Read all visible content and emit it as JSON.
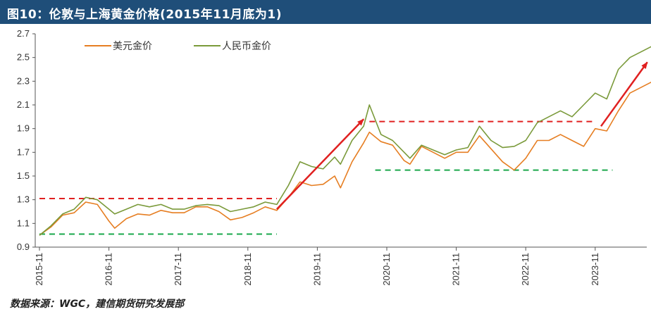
{
  "header": {
    "title": "图10：伦敦与上海黄金价格(2015年11月底为1)"
  },
  "footer": {
    "source": "数据来源：WGC，建信期货研究发展部"
  },
  "chart_data": {
    "type": "line",
    "title": "图10：伦敦与上海黄金价格(2015年11月底为1)",
    "xlabel": "",
    "ylabel": "",
    "ylim": [
      0.9,
      2.7
    ],
    "yticks": [
      "0.9",
      "1.1",
      "1.3",
      "1.5",
      "1.7",
      "1.9",
      "2.1",
      "2.3",
      "2.5",
      "2.7"
    ],
    "xticks": [
      "2015-11",
      "2016-11",
      "2017-11",
      "2018-11",
      "2019-11",
      "2020-11",
      "2021-11",
      "2022-11",
      "2023-11"
    ],
    "legend_position": "top-left",
    "grid": false,
    "series": [
      {
        "name": "美元金价",
        "color": "#e67e22",
        "points": [
          [
            "2015-11",
            1.0
          ],
          [
            "2016-01",
            1.07
          ],
          [
            "2016-03",
            1.17
          ],
          [
            "2016-05",
            1.19
          ],
          [
            "2016-07",
            1.28
          ],
          [
            "2016-09",
            1.26
          ],
          [
            "2016-11",
            1.12
          ],
          [
            "2016-12",
            1.06
          ],
          [
            "2017-02",
            1.14
          ],
          [
            "2017-04",
            1.18
          ],
          [
            "2017-06",
            1.17
          ],
          [
            "2017-08",
            1.21
          ],
          [
            "2017-10",
            1.19
          ],
          [
            "2017-12",
            1.19
          ],
          [
            "2018-02",
            1.24
          ],
          [
            "2018-04",
            1.24
          ],
          [
            "2018-06",
            1.2
          ],
          [
            "2018-08",
            1.13
          ],
          [
            "2018-10",
            1.15
          ],
          [
            "2018-12",
            1.19
          ],
          [
            "2019-02",
            1.24
          ],
          [
            "2019-04",
            1.21
          ],
          [
            "2019-06",
            1.32
          ],
          [
            "2019-08",
            1.45
          ],
          [
            "2019-10",
            1.42
          ],
          [
            "2019-12",
            1.43
          ],
          [
            "2020-02",
            1.5
          ],
          [
            "2020-03",
            1.4
          ],
          [
            "2020-05",
            1.62
          ],
          [
            "2020-07",
            1.78
          ],
          [
            "2020-08",
            1.87
          ],
          [
            "2020-10",
            1.79
          ],
          [
            "2020-12",
            1.76
          ],
          [
            "2021-02",
            1.63
          ],
          [
            "2021-03",
            1.6
          ],
          [
            "2021-05",
            1.75
          ],
          [
            "2021-07",
            1.7
          ],
          [
            "2021-09",
            1.65
          ],
          [
            "2021-11",
            1.7
          ],
          [
            "2022-01",
            1.7
          ],
          [
            "2022-03",
            1.84
          ],
          [
            "2022-05",
            1.73
          ],
          [
            "2022-07",
            1.62
          ],
          [
            "2022-09",
            1.55
          ],
          [
            "2022-11",
            1.65
          ],
          [
            "2023-01",
            1.8
          ],
          [
            "2023-03",
            1.8
          ],
          [
            "2023-05",
            1.85
          ],
          [
            "2023-07",
            1.8
          ],
          [
            "2023-09",
            1.75
          ],
          [
            "2023-11",
            1.9
          ],
          [
            "2024-01",
            1.88
          ],
          [
            "2024-03",
            2.05
          ],
          [
            "2024-05",
            2.2
          ],
          [
            "2024-07",
            2.25
          ],
          [
            "2024-09",
            2.3
          ]
        ]
      },
      {
        "name": "人民币金价",
        "color": "#7a9a3a",
        "points": [
          [
            "2015-11",
            1.0
          ],
          [
            "2016-01",
            1.08
          ],
          [
            "2016-03",
            1.18
          ],
          [
            "2016-05",
            1.22
          ],
          [
            "2016-07",
            1.32
          ],
          [
            "2016-09",
            1.3
          ],
          [
            "2016-11",
            1.22
          ],
          [
            "2016-12",
            1.18
          ],
          [
            "2017-02",
            1.22
          ],
          [
            "2017-04",
            1.26
          ],
          [
            "2017-06",
            1.24
          ],
          [
            "2017-08",
            1.26
          ],
          [
            "2017-10",
            1.22
          ],
          [
            "2017-12",
            1.22
          ],
          [
            "2018-02",
            1.25
          ],
          [
            "2018-04",
            1.26
          ],
          [
            "2018-06",
            1.25
          ],
          [
            "2018-08",
            1.2
          ],
          [
            "2018-10",
            1.22
          ],
          [
            "2018-12",
            1.24
          ],
          [
            "2019-02",
            1.28
          ],
          [
            "2019-04",
            1.26
          ],
          [
            "2019-06",
            1.42
          ],
          [
            "2019-08",
            1.62
          ],
          [
            "2019-10",
            1.58
          ],
          [
            "2019-12",
            1.56
          ],
          [
            "2020-02",
            1.66
          ],
          [
            "2020-03",
            1.6
          ],
          [
            "2020-05",
            1.8
          ],
          [
            "2020-07",
            1.92
          ],
          [
            "2020-08",
            2.1
          ],
          [
            "2020-10",
            1.85
          ],
          [
            "2020-12",
            1.8
          ],
          [
            "2021-02",
            1.7
          ],
          [
            "2021-03",
            1.65
          ],
          [
            "2021-05",
            1.76
          ],
          [
            "2021-07",
            1.72
          ],
          [
            "2021-09",
            1.68
          ],
          [
            "2021-11",
            1.72
          ],
          [
            "2022-01",
            1.74
          ],
          [
            "2022-03",
            1.92
          ],
          [
            "2022-05",
            1.8
          ],
          [
            "2022-07",
            1.74
          ],
          [
            "2022-09",
            1.75
          ],
          [
            "2022-11",
            1.8
          ],
          [
            "2023-01",
            1.95
          ],
          [
            "2023-03",
            2.0
          ],
          [
            "2023-05",
            2.05
          ],
          [
            "2023-07",
            2.0
          ],
          [
            "2023-09",
            2.1
          ],
          [
            "2023-11",
            2.2
          ],
          [
            "2024-01",
            2.15
          ],
          [
            "2024-03",
            2.4
          ],
          [
            "2024-05",
            2.5
          ],
          [
            "2024-07",
            2.55
          ],
          [
            "2024-09",
            2.6
          ]
        ]
      }
    ],
    "annotations": {
      "red_dashed_levels": [
        {
          "from": "2015-11",
          "to": "2019-04",
          "y": 1.31
        },
        {
          "from": "2020-08",
          "to": "2023-11",
          "y": 1.96
        }
      ],
      "green_dashed_levels": [
        {
          "from": "2015-11",
          "to": "2019-04",
          "y": 1.01
        },
        {
          "from": "2020-09",
          "to": "2024-02",
          "y": 1.55
        }
      ],
      "red_arrows": [
        {
          "from": [
            "2019-04",
            1.22
          ],
          "to": [
            "2020-07",
            1.98
          ]
        },
        {
          "from": [
            "2023-12",
            1.92
          ],
          "to": [
            "2024-08",
            2.46
          ]
        }
      ]
    }
  }
}
